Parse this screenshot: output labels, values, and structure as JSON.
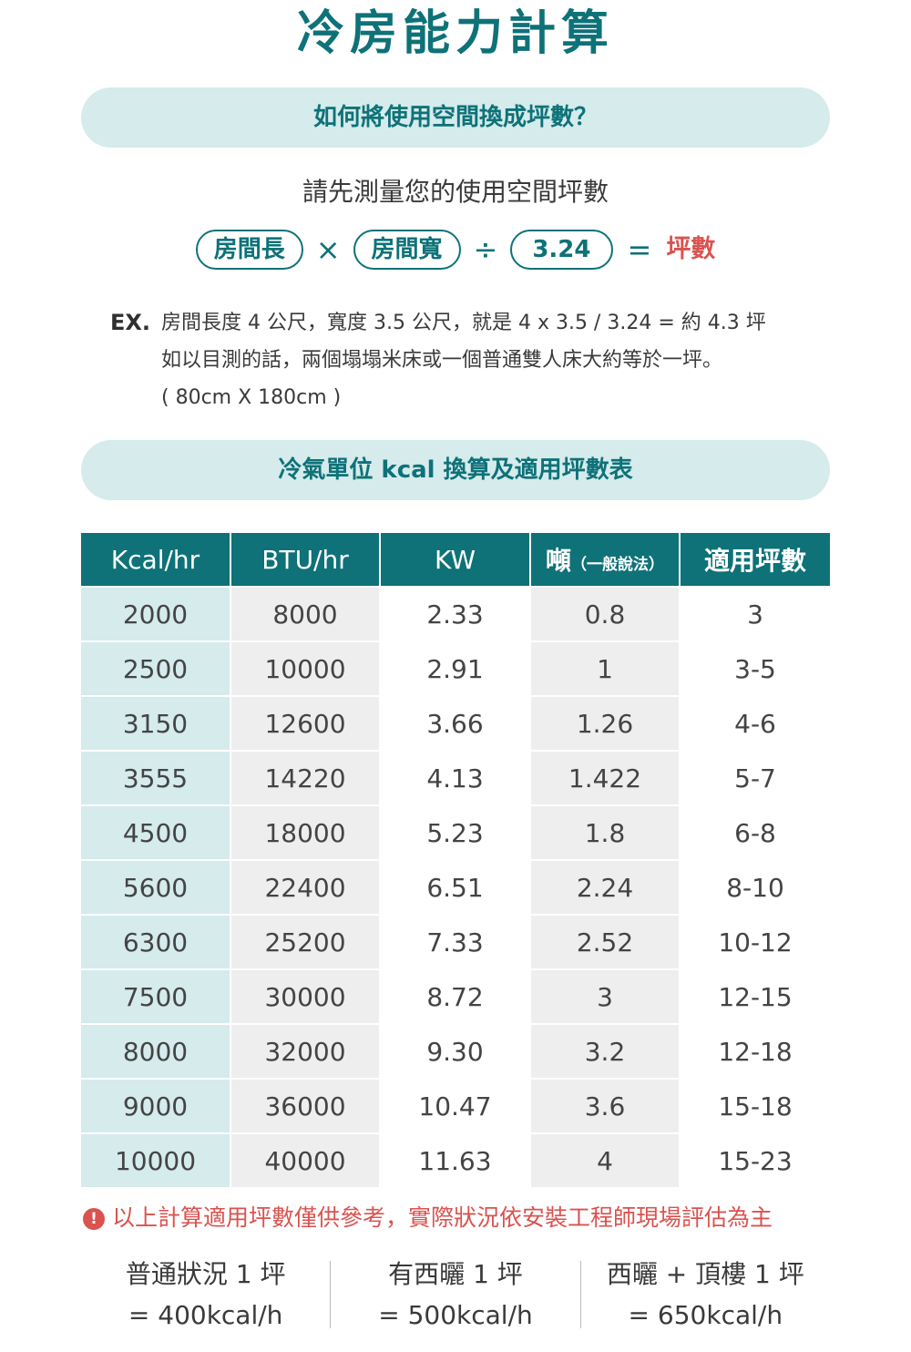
{
  "title": "冷房能力計算",
  "section1": {
    "header": "如何將使用空間換成坪數？",
    "intro": "請先測量您的使用空間坪數",
    "formula": {
      "length": "房間長",
      "times": "×",
      "width": "房間寬",
      "divide": "÷",
      "constant": "3.24",
      "equals": "=",
      "result": "坪數"
    },
    "example": {
      "label": "EX.",
      "lines": [
        "房間長度 4 公尺，寬度 3.5 公尺，就是 4 x 3.5 / 3.24 = 約 4.3 坪",
        "如以目測的話，兩個塌塌米床或一個普通雙人床大約等於一坪。",
        "( 80cm X 180cm )"
      ]
    }
  },
  "section2": {
    "header": "冷氣單位 kcal 換算及適用坪數表"
  },
  "table": {
    "headers": [
      "Kcal/hr",
      "BTU/hr",
      "KW",
      "噸",
      "適用坪數"
    ],
    "ton_note": "（一般說法）",
    "rows": [
      [
        "2000",
        "8000",
        "2.33",
        "0.8",
        "3"
      ],
      [
        "2500",
        "10000",
        "2.91",
        "1",
        "3-5"
      ],
      [
        "3150",
        "12600",
        "3.66",
        "1.26",
        "4-6"
      ],
      [
        "3555",
        "14220",
        "4.13",
        "1.422",
        "5-7"
      ],
      [
        "4500",
        "18000",
        "5.23",
        "1.8",
        "6-8"
      ],
      [
        "5600",
        "22400",
        "6.51",
        "2.24",
        "8-10"
      ],
      [
        "6300",
        "25200",
        "7.33",
        "2.52",
        "10-12"
      ],
      [
        "7500",
        "30000",
        "8.72",
        "3",
        "12-15"
      ],
      [
        "8000",
        "32000",
        "9.30",
        "3.2",
        "12-18"
      ],
      [
        "9000",
        "36000",
        "10.47",
        "3.6",
        "15-18"
      ],
      [
        "10000",
        "40000",
        "11.63",
        "4",
        "15-23"
      ]
    ]
  },
  "notice": {
    "icon": "exclamation-icon",
    "icon_glyph": "!",
    "text": "以上計算適用坪數僅供參考，實際狀況依安裝工程師現場評估為主"
  },
  "footer": [
    {
      "line1": "普通狀況 1 坪",
      "line2": "= 400kcal/h"
    },
    {
      "line1": "有西曬 1 坪",
      "line2": "= 500kcal/h"
    },
    {
      "line1": "西曬 + 頂樓 1 坪",
      "line2": "= 650kcal/h"
    }
  ],
  "colors": {
    "teal": "#0e7278",
    "light_teal": "#d5ebec",
    "gray_cell": "#eeeeee",
    "red": "#d9534f"
  }
}
